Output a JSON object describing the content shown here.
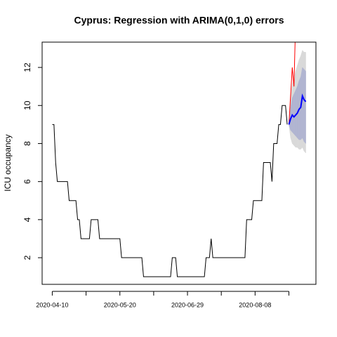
{
  "chart_data": {
    "type": "forecast",
    "title": "Cyprus: Regression with ARIMA(0,1,0) errors",
    "y_label": "ICU occupancy",
    "xlim": [
      "2020-04-04",
      "2020-09-13"
    ],
    "ylim": [
      0.6,
      13.33
    ],
    "yticks": [
      2,
      4,
      6,
      8,
      10,
      12
    ],
    "xticks": [
      "2020-04-10",
      "2020-05-20",
      "2020-06-29",
      "2020-08-08"
    ],
    "xminor_ticks": [
      "2020-04-30",
      "2020-06-09",
      "2020-07-19",
      "2020-08-28"
    ],
    "observed": {
      "color": "#000000",
      "x": [
        "2020-04-10",
        "2020-04-11",
        "2020-04-12",
        "2020-04-13",
        "2020-04-14",
        "2020-04-15",
        "2020-04-16",
        "2020-04-17",
        "2020-04-18",
        "2020-04-19",
        "2020-04-20",
        "2020-04-21",
        "2020-04-22",
        "2020-04-23",
        "2020-04-24",
        "2020-04-25",
        "2020-04-26",
        "2020-04-27",
        "2020-04-28",
        "2020-04-29",
        "2020-04-30",
        "2020-05-01",
        "2020-05-02",
        "2020-05-03",
        "2020-05-04",
        "2020-05-05",
        "2020-05-06",
        "2020-05-07",
        "2020-05-08",
        "2020-05-09",
        "2020-05-10",
        "2020-05-11",
        "2020-05-12",
        "2020-05-13",
        "2020-05-14",
        "2020-05-15",
        "2020-05-16",
        "2020-05-17",
        "2020-05-18",
        "2020-05-19",
        "2020-05-20",
        "2020-05-21",
        "2020-05-22",
        "2020-05-23",
        "2020-05-24",
        "2020-05-25",
        "2020-05-26",
        "2020-05-27",
        "2020-05-28",
        "2020-05-29",
        "2020-05-30",
        "2020-05-31",
        "2020-06-01",
        "2020-06-02",
        "2020-06-03",
        "2020-06-04",
        "2020-06-05",
        "2020-06-06",
        "2020-06-07",
        "2020-06-08",
        "2020-06-09",
        "2020-06-10",
        "2020-06-11",
        "2020-06-12",
        "2020-06-13",
        "2020-06-14",
        "2020-06-15",
        "2020-06-16",
        "2020-06-17",
        "2020-06-18",
        "2020-06-19",
        "2020-06-20",
        "2020-06-21",
        "2020-06-22",
        "2020-06-23",
        "2020-06-24",
        "2020-06-25",
        "2020-06-26",
        "2020-06-27",
        "2020-06-28",
        "2020-06-29",
        "2020-06-30",
        "2020-07-01",
        "2020-07-02",
        "2020-07-03",
        "2020-07-04",
        "2020-07-05",
        "2020-07-06",
        "2020-07-07",
        "2020-07-08",
        "2020-07-09",
        "2020-07-10",
        "2020-07-11",
        "2020-07-12",
        "2020-07-13",
        "2020-07-14",
        "2020-07-15",
        "2020-07-16",
        "2020-07-17",
        "2020-07-18",
        "2020-07-19",
        "2020-07-20",
        "2020-07-21",
        "2020-07-22",
        "2020-07-23",
        "2020-07-24",
        "2020-07-25",
        "2020-07-26",
        "2020-07-27",
        "2020-07-28",
        "2020-07-29",
        "2020-07-30",
        "2020-07-31",
        "2020-08-01",
        "2020-08-02",
        "2020-08-03",
        "2020-08-04",
        "2020-08-05",
        "2020-08-06",
        "2020-08-07",
        "2020-08-08",
        "2020-08-09",
        "2020-08-10",
        "2020-08-11",
        "2020-08-12",
        "2020-08-13",
        "2020-08-14",
        "2020-08-15",
        "2020-08-16",
        "2020-08-17",
        "2020-08-18",
        "2020-08-19",
        "2020-08-20",
        "2020-08-21",
        "2020-08-22",
        "2020-08-23",
        "2020-08-24",
        "2020-08-25",
        "2020-08-26",
        "2020-08-27"
      ],
      "values": [
        9,
        9,
        7,
        6,
        6,
        6,
        6,
        6,
        6,
        6,
        5,
        5,
        5,
        5,
        5,
        4,
        4,
        3,
        3,
        3,
        3,
        3,
        3,
        4,
        4,
        4,
        4,
        4,
        3,
        3,
        3,
        3,
        3,
        3,
        3,
        3,
        3,
        3,
        3,
        3,
        3,
        2,
        2,
        2,
        2,
        2,
        2,
        2,
        2,
        2,
        2,
        2,
        2,
        2,
        1,
        1,
        1,
        1,
        1,
        1,
        1,
        1,
        1,
        1,
        1,
        1,
        1,
        1,
        1,
        1,
        1,
        2,
        2,
        2,
        1,
        1,
        1,
        1,
        1,
        1,
        1,
        1,
        1,
        1,
        1,
        1,
        1,
        1,
        1,
        1,
        1,
        2,
        2,
        2,
        3,
        2,
        2,
        2,
        2,
        2,
        2,
        2,
        2,
        2,
        2,
        2,
        2,
        2,
        2,
        2,
        2,
        2,
        2,
        2,
        2,
        4,
        4,
        4,
        4,
        5,
        5,
        5,
        5,
        5,
        5,
        7,
        7,
        7,
        7,
        7,
        6,
        8,
        8,
        8,
        9,
        9,
        10,
        10,
        10,
        9
      ]
    },
    "actual": {
      "color": "#ff0000",
      "x": [
        "2020-08-28",
        "2020-08-29",
        "2020-08-30",
        "2020-08-31",
        "2020-09-01"
      ],
      "values": [
        9,
        10.5,
        12,
        11,
        14.5
      ]
    },
    "forecast": {
      "mean_color": "#0000ff",
      "band80_color": "#b1b5d1",
      "band95_color": "#d9d9d9",
      "x": [
        "2020-08-28",
        "2020-08-29",
        "2020-08-30",
        "2020-08-31",
        "2020-09-01",
        "2020-09-02",
        "2020-09-03",
        "2020-09-04",
        "2020-09-05",
        "2020-09-06",
        "2020-09-07"
      ],
      "mean": [
        9.0,
        9.3,
        9.5,
        9.4,
        9.5,
        9.6,
        9.8,
        9.9,
        10.5,
        10.3,
        10.2
      ],
      "lo80": [
        9.0,
        8.7,
        8.6,
        8.5,
        8.4,
        8.3,
        8.2,
        8.2,
        8.3,
        8.1,
        8.0
      ],
      "hi80": [
        9.0,
        9.9,
        10.4,
        10.6,
        10.8,
        11.0,
        11.3,
        11.5,
        12.0,
        11.9,
        11.8
      ],
      "lo95": [
        9.0,
        8.3,
        8.0,
        7.9,
        7.8,
        7.8,
        7.7,
        7.7,
        7.8,
        7.6,
        7.5
      ],
      "hi95": [
        9.0,
        10.4,
        11.1,
        11.4,
        11.8,
        12.1,
        12.4,
        12.6,
        12.9,
        12.8,
        12.8
      ]
    }
  }
}
